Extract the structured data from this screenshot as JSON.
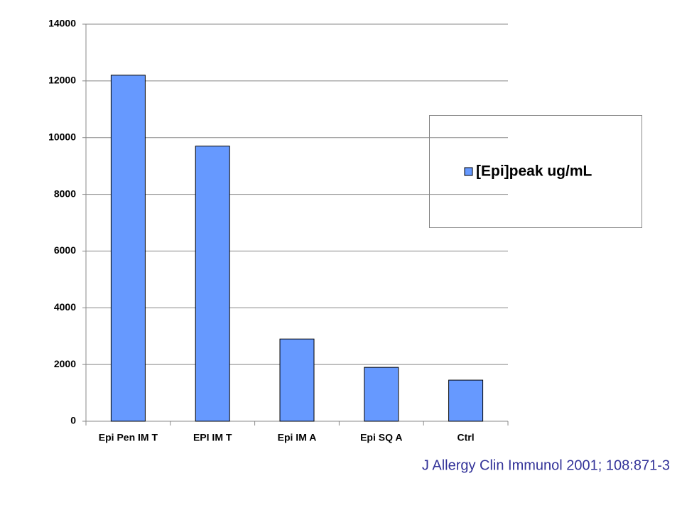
{
  "chart_data": {
    "type": "bar",
    "categories": [
      "Epi Pen IM T",
      "EPI IM T",
      "Epi IM A",
      "Epi SQ A",
      "Ctrl"
    ],
    "series": [
      {
        "name": "[Epi]peak ug/mL",
        "color": "#6699ff",
        "values": [
          12200,
          9700,
          2900,
          1900,
          1450
        ]
      }
    ],
    "ylim": [
      0,
      14000
    ],
    "yticks": [
      0,
      2000,
      4000,
      6000,
      8000,
      10000,
      12000,
      14000
    ],
    "grid": true,
    "legend_position": "right",
    "note": "J Allergy Clin Immunol 2001; 108:871-3"
  }
}
